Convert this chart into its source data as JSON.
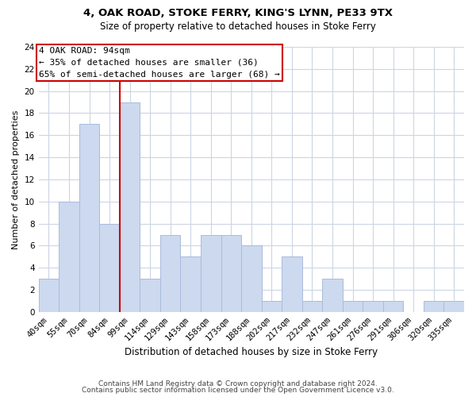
{
  "title1": "4, OAK ROAD, STOKE FERRY, KING'S LYNN, PE33 9TX",
  "title2": "Size of property relative to detached houses in Stoke Ferry",
  "xlabel": "Distribution of detached houses by size in Stoke Ferry",
  "ylabel": "Number of detached properties",
  "bar_labels": [
    "40sqm",
    "55sqm",
    "70sqm",
    "84sqm",
    "99sqm",
    "114sqm",
    "129sqm",
    "143sqm",
    "158sqm",
    "173sqm",
    "188sqm",
    "202sqm",
    "217sqm",
    "232sqm",
    "247sqm",
    "261sqm",
    "276sqm",
    "291sqm",
    "306sqm",
    "320sqm",
    "335sqm"
  ],
  "bar_values": [
    3,
    10,
    17,
    8,
    19,
    3,
    7,
    5,
    7,
    7,
    6,
    1,
    5,
    1,
    3,
    1,
    1,
    1,
    0,
    1,
    1
  ],
  "bar_color": "#ccd9ee",
  "bar_edge_color": "#aabbdd",
  "property_line_color": "#cc0000",
  "annotation_title": "4 OAK ROAD: 94sqm",
  "annotation_line1": "← 35% of detached houses are smaller (36)",
  "annotation_line2": "65% of semi-detached houses are larger (68) →",
  "annotation_box_facecolor": "#ffffff",
  "annotation_box_edgecolor": "#cc0000",
  "ylim": [
    0,
    24
  ],
  "yticks": [
    0,
    2,
    4,
    6,
    8,
    10,
    12,
    14,
    16,
    18,
    20,
    22,
    24
  ],
  "footer1": "Contains HM Land Registry data © Crown copyright and database right 2024.",
  "footer2": "Contains public sector information licensed under the Open Government Licence v3.0.",
  "bg_color": "#ffffff",
  "grid_color": "#ccd5e5",
  "title1_fontsize": 9.5,
  "title2_fontsize": 8.5,
  "xlabel_fontsize": 8.5,
  "ylabel_fontsize": 8,
  "tick_fontsize": 7.5,
  "footer_fontsize": 6.5
}
